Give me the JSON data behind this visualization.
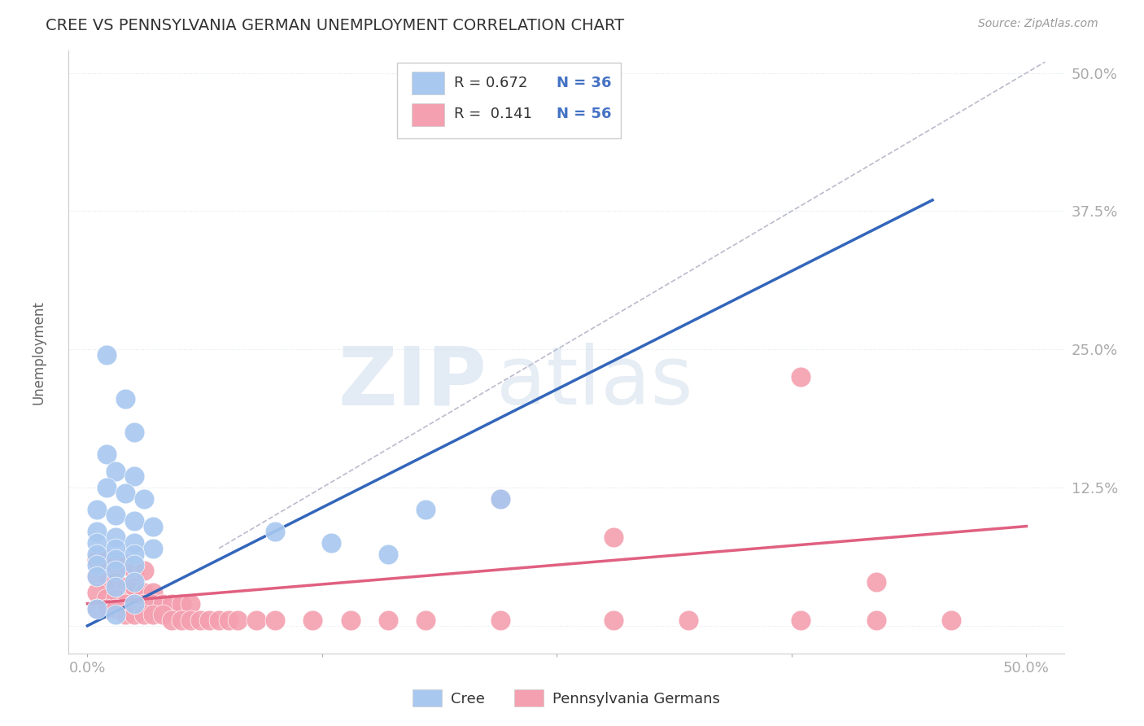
{
  "title": "CREE VS PENNSYLVANIA GERMAN UNEMPLOYMENT CORRELATION CHART",
  "source_text": "Source: ZipAtlas.com",
  "ylabel": "Unemployment",
  "xlim": [
    -0.01,
    0.52
  ],
  "ylim": [
    -0.025,
    0.52
  ],
  "xticks": [
    0.0,
    0.125,
    0.25,
    0.375,
    0.5
  ],
  "xticklabels": [
    "0.0%",
    "",
    "",
    "",
    "50.0%"
  ],
  "yticks": [
    0.0,
    0.125,
    0.25,
    0.375,
    0.5
  ],
  "yticklabels": [
    "",
    "12.5%",
    "25.0%",
    "37.5%",
    "50.0%"
  ],
  "cree_color": "#a8c8f0",
  "penn_color": "#f4a0b0",
  "cree_line_color": "#3366bb",
  "penn_line_color": "#e06080",
  "ref_line_color": "#bbbbcc",
  "legend_R_cree": "R = 0.672",
  "legend_N_cree": "N = 36",
  "legend_R_penn": "R =  0.141",
  "legend_N_penn": "N = 56",
  "watermark_zip": "ZIP",
  "watermark_atlas": "atlas",
  "background_color": "#ffffff",
  "grid_color": "#dde8f0",
  "cree_scatter": [
    [
      0.01,
      0.245
    ],
    [
      0.02,
      0.205
    ],
    [
      0.025,
      0.175
    ],
    [
      0.01,
      0.155
    ],
    [
      0.015,
      0.14
    ],
    [
      0.025,
      0.135
    ],
    [
      0.01,
      0.125
    ],
    [
      0.02,
      0.12
    ],
    [
      0.03,
      0.115
    ],
    [
      0.005,
      0.105
    ],
    [
      0.015,
      0.1
    ],
    [
      0.025,
      0.095
    ],
    [
      0.035,
      0.09
    ],
    [
      0.005,
      0.085
    ],
    [
      0.015,
      0.08
    ],
    [
      0.025,
      0.075
    ],
    [
      0.035,
      0.07
    ],
    [
      0.005,
      0.075
    ],
    [
      0.015,
      0.07
    ],
    [
      0.025,
      0.065
    ],
    [
      0.005,
      0.065
    ],
    [
      0.015,
      0.06
    ],
    [
      0.025,
      0.055
    ],
    [
      0.005,
      0.055
    ],
    [
      0.015,
      0.05
    ],
    [
      0.025,
      0.04
    ],
    [
      0.005,
      0.045
    ],
    [
      0.015,
      0.035
    ],
    [
      0.025,
      0.02
    ],
    [
      0.005,
      0.015
    ],
    [
      0.015,
      0.01
    ],
    [
      0.18,
      0.105
    ],
    [
      0.22,
      0.115
    ],
    [
      0.1,
      0.085
    ],
    [
      0.13,
      0.075
    ],
    [
      0.16,
      0.065
    ]
  ],
  "penn_scatter": [
    [
      0.005,
      0.06
    ],
    [
      0.01,
      0.06
    ],
    [
      0.015,
      0.055
    ],
    [
      0.02,
      0.055
    ],
    [
      0.025,
      0.05
    ],
    [
      0.03,
      0.05
    ],
    [
      0.005,
      0.045
    ],
    [
      0.01,
      0.04
    ],
    [
      0.015,
      0.04
    ],
    [
      0.02,
      0.035
    ],
    [
      0.025,
      0.035
    ],
    [
      0.03,
      0.03
    ],
    [
      0.035,
      0.03
    ],
    [
      0.005,
      0.03
    ],
    [
      0.01,
      0.025
    ],
    [
      0.015,
      0.025
    ],
    [
      0.02,
      0.02
    ],
    [
      0.025,
      0.02
    ],
    [
      0.03,
      0.02
    ],
    [
      0.035,
      0.02
    ],
    [
      0.04,
      0.02
    ],
    [
      0.045,
      0.02
    ],
    [
      0.05,
      0.02
    ],
    [
      0.055,
      0.02
    ],
    [
      0.005,
      0.015
    ],
    [
      0.01,
      0.015
    ],
    [
      0.015,
      0.015
    ],
    [
      0.02,
      0.01
    ],
    [
      0.025,
      0.01
    ],
    [
      0.03,
      0.01
    ],
    [
      0.035,
      0.01
    ],
    [
      0.04,
      0.01
    ],
    [
      0.045,
      0.005
    ],
    [
      0.05,
      0.005
    ],
    [
      0.055,
      0.005
    ],
    [
      0.06,
      0.005
    ],
    [
      0.065,
      0.005
    ],
    [
      0.07,
      0.005
    ],
    [
      0.075,
      0.005
    ],
    [
      0.08,
      0.005
    ],
    [
      0.09,
      0.005
    ],
    [
      0.1,
      0.005
    ],
    [
      0.12,
      0.005
    ],
    [
      0.14,
      0.005
    ],
    [
      0.16,
      0.005
    ],
    [
      0.18,
      0.005
    ],
    [
      0.22,
      0.005
    ],
    [
      0.28,
      0.005
    ],
    [
      0.32,
      0.005
    ],
    [
      0.38,
      0.005
    ],
    [
      0.42,
      0.005
    ],
    [
      0.46,
      0.005
    ],
    [
      0.22,
      0.115
    ],
    [
      0.28,
      0.08
    ],
    [
      0.38,
      0.225
    ],
    [
      0.42,
      0.04
    ]
  ],
  "cree_line_x": [
    0.0,
    0.45
  ],
  "cree_line_y": [
    0.0,
    0.385
  ],
  "penn_line_x": [
    0.0,
    0.5
  ],
  "penn_line_y": [
    0.02,
    0.09
  ],
  "ref_line_x": [
    0.07,
    0.51
  ],
  "ref_line_y": [
    0.07,
    0.51
  ]
}
